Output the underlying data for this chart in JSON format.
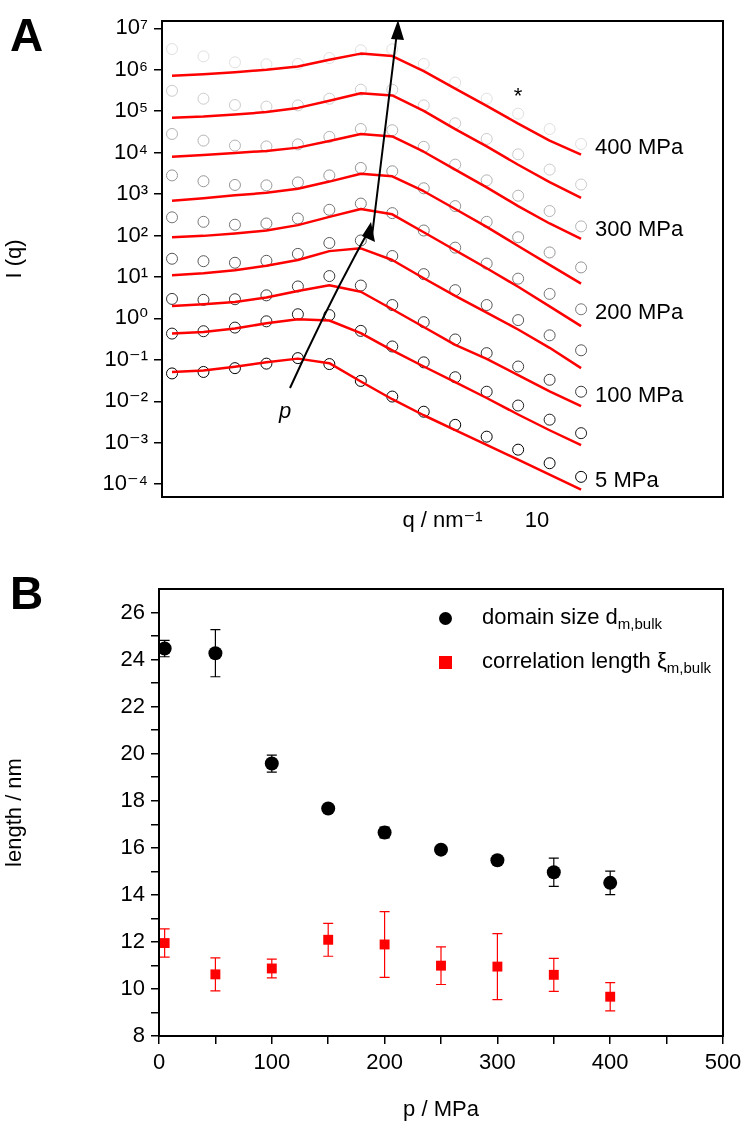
{
  "chart_data": [
    {
      "type": "scatter",
      "title": "A",
      "xlabel": "q / nm⁻¹",
      "ylabel": "I (q)",
      "log": "y",
      "marker": "circle",
      "categories": [
        null,
        null,
        null,
        null,
        null,
        null,
        null,
        null,
        null,
        null,
        null,
        null,
        null,
        null
      ],
      "ylim": [
        4.9e-05,
        15000000.0
      ],
      "yticks": [
        {
          "value": 0.0001,
          "label": "10⁻⁴"
        },
        {
          "value": 0.001,
          "label": "10⁻³"
        },
        {
          "value": 0.01,
          "label": "10⁻²"
        },
        {
          "value": 0.1,
          "label": "10⁻¹"
        },
        {
          "value": 1,
          "label": "10⁰"
        },
        {
          "value": 10,
          "label": "10¹"
        },
        {
          "value": 100,
          "label": "10²"
        },
        {
          "value": 1000,
          "label": "10³"
        },
        {
          "value": 10000.0,
          "label": "10⁴"
        },
        {
          "value": 100000.0,
          "label": "10⁵"
        },
        {
          "value": 1000000.0,
          "label": "10⁶"
        },
        {
          "value": 10000000.0,
          "label": "10⁷"
        }
      ],
      "series": [
        {
          "name": "5 MPa",
          "color": "#000000",
          "values": [
            0.047,
            0.051,
            0.063,
            0.081,
            0.11,
            0.079,
            0.031,
            0.013,
            0.0056,
            0.0027,
            0.0014,
            0.00068,
            0.00032,
            0.00015
          ]
        },
        {
          "color": "#1e1e1e",
          "values": [
            0.43,
            0.49,
            0.6,
            0.85,
            1.26,
            1.2,
            0.5,
            0.21,
            0.087,
            0.038,
            0.017,
            0.0079,
            0.0036,
            0.0017
          ]
        },
        {
          "name": "100 MPa",
          "color": "#3c3c3c",
          "values": [
            2.95,
            2.8,
            2.9,
            3.6,
            5.9,
            10.5,
            6.2,
            2.1,
            0.81,
            0.31,
            0.145,
            0.069,
            0.033,
            0.017
          ]
        },
        {
          "color": "#5a5a5a",
          "values": [
            27.5,
            24,
            22,
            24.5,
            36,
            66,
            76,
            32,
            11.7,
            4.8,
            2.1,
            0.91,
            0.39,
            0.17
          ]
        },
        {
          "name": "200 MPa",
          "color": "#787878",
          "values": [
            275,
            214,
            182,
            195,
            257,
            417,
            589,
            347,
            132,
            51,
            21,
            9.1,
            3.9,
            1.66
          ]
        },
        {
          "color": "#969696",
          "values": [
            2820,
            2040,
            1660,
            1620,
            1910,
            2820,
            4270,
            3550,
            1380,
            513,
            214,
            91,
            39,
            17
          ]
        },
        {
          "name": "300 MPa",
          "color": "#b4b4b4",
          "values": [
            28200,
            19500,
            14800,
            14100,
            15800,
            24000,
            37200,
            34700,
            13800,
            5130,
            2140,
            912,
            389,
            166
          ]
        },
        {
          "color": "#cccccc",
          "values": [
            310000.0,
            200000.0,
            141000.0,
            129000.0,
            138000.0,
            200000.0,
            330000.0,
            330000.0,
            138000.0,
            51000.0,
            21400.0,
            9100,
            3890,
            1700
          ]
        },
        {
          "name": "400 MPa",
          "color": "#e0e0e0",
          "values": [
            3160000.0,
            2100000.0,
            1510000.0,
            1350000.0,
            1380000.0,
            1910000.0,
            2950000.0,
            3100000.0,
            1380000.0,
            490000.0,
            200000.0,
            87000.0,
            37000.0,
            16200.0
          ]
        },
        {
          "type": "line",
          "marker": "none",
          "color": "#ff0000",
          "values": [
            0.051,
            0.055,
            0.068,
            0.087,
            0.107,
            0.083,
            0.03,
            0.0112,
            0.0046,
            0.002,
            0.00089,
            0.00039,
            0.00017,
            7.4e-05
          ]
        },
        {
          "type": "line",
          "marker": "none",
          "color": "#ff0000",
          "values": [
            0.43,
            0.47,
            0.57,
            0.76,
            0.95,
            0.89,
            0.44,
            0.17,
            0.069,
            0.029,
            0.012,
            0.0048,
            0.002,
            0.00087
          ]
        },
        {
          "type": "line",
          "marker": "none",
          "color": "#ff0000",
          "values": [
            2.0,
            2.2,
            2.5,
            3.2,
            4.6,
            6.3,
            4.4,
            1.66,
            0.62,
            0.23,
            0.105,
            0.043,
            0.0174,
            0.0076
          ]
        },
        {
          "type": "line",
          "marker": "none",
          "color": "#ff0000",
          "values": [
            11,
            12.3,
            14.5,
            18.6,
            25.7,
            42,
            49,
            25.7,
            9.3,
            3.5,
            1.38,
            0.54,
            0.195,
            0.063
          ]
        },
        {
          "type": "line",
          "marker": "none",
          "color": "#ff0000",
          "values": [
            91,
            98,
            112,
            132,
            178,
            282,
            437,
            324,
            120,
            44,
            16.2,
            5.8,
            1.95,
            0.65
          ]
        },
        {
          "type": "line",
          "marker": "none",
          "color": "#ff0000",
          "values": [
            692,
            794,
            933,
            1070,
            1350,
            2000,
            3090,
            2690,
            1170,
            437,
            162,
            56,
            19.5,
            6.9
          ]
        },
        {
          "type": "line",
          "marker": "none",
          "color": "#ff0000",
          "values": [
            7940,
            8710,
            9770,
            11000,
            13200,
            19100,
            28200,
            24500,
            10500,
            3890,
            1450,
            513,
            195,
            83
          ]
        },
        {
          "type": "line",
          "marker": "none",
          "color": "#ff0000",
          "values": [
            69000.0,
            74000.0,
            83000.0,
            95000.0,
            120000.0,
            178000.0,
            270000.0,
            240000.0,
            102000.0,
            37000.0,
            14100.0,
            5100,
            1950,
            813
          ]
        },
        {
          "type": "line",
          "marker": "none",
          "color": "#ff0000",
          "values": [
            720000.0,
            780000.0,
            870000.0,
            1000000.0,
            1200000.0,
            1740000.0,
            2450000.0,
            2140000.0,
            930000.0,
            350000.0,
            135000.0,
            50000.0,
            19500.0,
            8900.0
          ]
        }
      ],
      "annotations": [
        "*",
        "p",
        "10"
      ]
    },
    {
      "type": "scatter",
      "title": "B",
      "xlabel": "p / MPa",
      "ylabel": "length / nm",
      "legend": "top right",
      "x": [
        5,
        50,
        100,
        150,
        200,
        250,
        300,
        350,
        400
      ],
      "xlim": [
        0,
        500
      ],
      "xticks": [
        0,
        {
          "value": 50,
          "label": null
        },
        100,
        {
          "value": 150,
          "label": null
        },
        200,
        {
          "value": 250,
          "label": null
        },
        300,
        {
          "value": 350,
          "label": null
        },
        400,
        {
          "value": 450,
          "label": null
        },
        500
      ],
      "ylim": [
        8,
        27
      ],
      "yticks": [
        8,
        {
          "value": 9,
          "label": null
        },
        10,
        {
          "value": 11,
          "label": null
        },
        12,
        {
          "value": 13,
          "label": null
        },
        14,
        {
          "value": 15,
          "label": null
        },
        16,
        {
          "value": 17,
          "label": null
        },
        18,
        {
          "value": 19,
          "label": null
        },
        20,
        {
          "value": 21,
          "label": null
        },
        22,
        {
          "value": 23,
          "label": null
        },
        24,
        {
          "value": 25,
          "label": null
        },
        26
      ],
      "series": [
        {
          "name": "domain size d$_{m,bulk}$",
          "color": "#000000",
          "values": [
            24.47,
            24.27,
            19.58,
            17.67,
            16.65,
            15.92,
            15.47,
            14.96,
            14.51
          ],
          "errors": [
            0.35,
            1.0,
            0.36,
            null,
            0.23,
            null,
            null,
            0.6,
            0.5
          ]
        },
        {
          "name": "correlation length ξ$_{m,bulk}$",
          "marker": "square",
          "color": "#ff0000",
          "values": [
            11.95,
            10.62,
            10.87,
            12.09,
            11.89,
            10.99,
            10.95,
            10.6,
            9.67
          ],
          "errors": [
            0.6,
            0.7,
            0.4,
            0.7,
            1.4,
            0.8,
            1.4,
            0.7,
            0.6
          ]
        }
      ]
    }
  ]
}
